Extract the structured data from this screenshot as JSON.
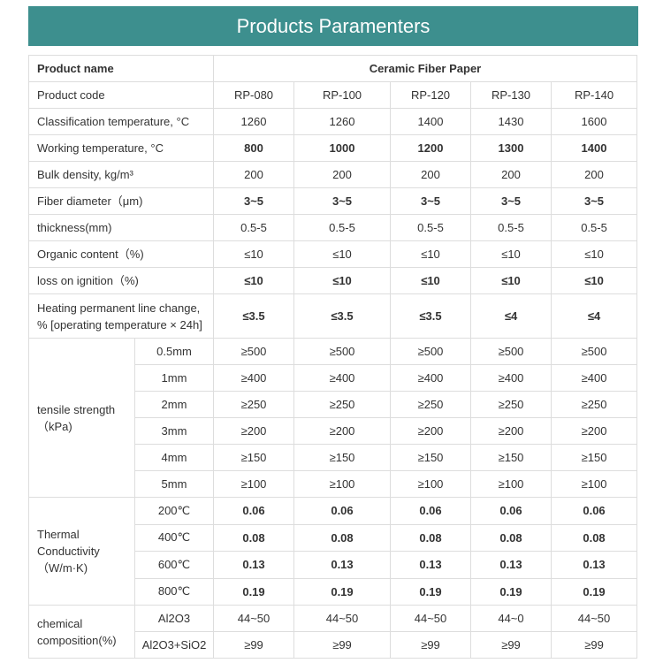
{
  "header": {
    "title": "Products Paramenters"
  },
  "table": {
    "head": {
      "label": "Product name",
      "value": "Ceramic Fiber Paper"
    },
    "rows": [
      {
        "label": [
          "Product code"
        ],
        "values": [
          "RP-080",
          "RP-100",
          "RP-120",
          "RP-130",
          "RP-140"
        ]
      },
      {
        "label": [
          "Classification temperature, °C"
        ],
        "values": [
          1260,
          1260,
          1400,
          1430,
          1600
        ]
      },
      {
        "label": [
          "Working temperature, °C"
        ],
        "values": [
          800,
          1000,
          1200,
          1300,
          1400
        ],
        "bold": true
      },
      {
        "label": [
          "Bulk density, kg/m³"
        ],
        "values": [
          200,
          200,
          200,
          200,
          200
        ]
      },
      {
        "label": [
          "Fiber diameter（μm)"
        ],
        "values": [
          "3~5",
          "3~5",
          "3~5",
          "3~5",
          "3~5"
        ],
        "bold": true
      },
      {
        "label": [
          "thickness(mm)"
        ],
        "values": [
          "0.5-5",
          "0.5-5",
          "0.5-5",
          "0.5-5",
          "0.5-5"
        ]
      },
      {
        "label": [
          "Organic content（%)"
        ],
        "values": [
          "≤10",
          "≤10",
          "≤10",
          "≤10",
          "≤10"
        ]
      },
      {
        "label": [
          "loss on ignition（%)"
        ],
        "values": [
          "≤10",
          "≤10",
          "≤10",
          "≤10",
          "≤10"
        ],
        "bold": true
      },
      {
        "label": [
          "Heating permanent line change,",
          "% [operating temperature × 24h]"
        ],
        "values": [
          "≤3.5",
          "≤3.5",
          "≤3.5",
          "≤4",
          "≤4"
        ],
        "bold": true
      }
    ],
    "groups": [
      {
        "label": [
          "tensile strength",
          "（kPa)"
        ],
        "rows": [
          {
            "sub": "0.5mm",
            "values": [
              "≥500",
              "≥500",
              "≥500",
              "≥500",
              "≥500"
            ]
          },
          {
            "sub": "1mm",
            "values": [
              "≥400",
              "≥400",
              "≥400",
              "≥400",
              "≥400"
            ]
          },
          {
            "sub": "2mm",
            "values": [
              "≥250",
              "≥250",
              "≥250",
              "≥250",
              "≥250"
            ]
          },
          {
            "sub": "3mm",
            "values": [
              "≥200",
              "≥200",
              "≥200",
              "≥200",
              "≥200"
            ]
          },
          {
            "sub": "4mm",
            "values": [
              "≥150",
              "≥150",
              "≥150",
              "≥150",
              "≥150"
            ]
          },
          {
            "sub": "5mm",
            "values": [
              "≥100",
              "≥100",
              "≥100",
              "≥100",
              "≥100"
            ]
          }
        ]
      },
      {
        "label": [
          "Thermal",
          "Conductivity",
          "（W/m·K)"
        ],
        "bold": true,
        "rows": [
          {
            "sub": "200℃",
            "values": [
              0.06,
              0.06,
              0.06,
              0.06,
              0.06
            ]
          },
          {
            "sub": "400℃",
            "values": [
              0.08,
              0.08,
              0.08,
              0.08,
              0.08
            ]
          },
          {
            "sub": "600℃",
            "values": [
              0.13,
              0.13,
              0.13,
              0.13,
              0.13
            ]
          },
          {
            "sub": "800℃",
            "values": [
              0.19,
              0.19,
              0.19,
              0.19,
              0.19
            ]
          }
        ]
      },
      {
        "label": [
          "chemical",
          "composition(%)"
        ],
        "rows": [
          {
            "sub": "Al2O3",
            "values": [
              "44~50",
              "44~50",
              "44~50",
              "44~0",
              "44~50"
            ]
          },
          {
            "sub": "Al2O3+SiO2",
            "values": [
              "≥99",
              "≥99",
              "≥99",
              "≥99",
              "≥99"
            ]
          }
        ]
      }
    ]
  }
}
